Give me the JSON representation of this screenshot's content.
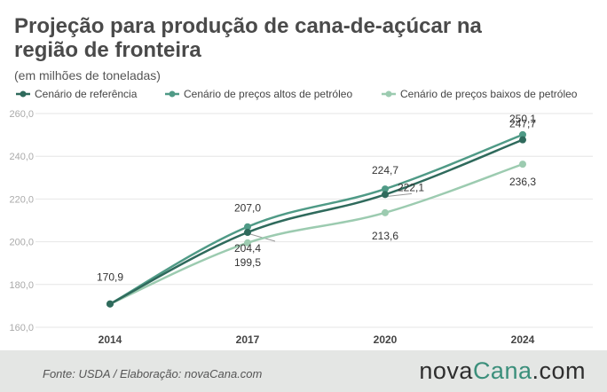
{
  "title": "Projeção para produção de cana-de-açúcar na região de fronteira",
  "subtitle": "(em milhões de toneladas)",
  "source": "Fonte: USDA / Elaboração:  novaCana.com",
  "logo": {
    "part1": "nova",
    "part2": "Cana",
    "part3": ".com"
  },
  "colors": {
    "ref": "#2f6a5c",
    "high": "#4f9a86",
    "low": "#9ccbb0",
    "grid": "#e6e6e6",
    "axis_text": "#aaaaaa",
    "footer_bg": "#e4e6e4",
    "accent": "#3b8f7b"
  },
  "chart_data": {
    "type": "line",
    "categories": [
      "2014",
      "2017",
      "2020",
      "2024"
    ],
    "ylim": [
      160,
      260
    ],
    "yticks": [
      "160,0",
      "180,0",
      "200,0",
      "220,0",
      "240,0",
      "260,0"
    ],
    "legend_position": "top",
    "grid": true,
    "series": [
      {
        "name": "Cenário de referência",
        "values": [
          170.9,
          204.4,
          222.1,
          247.7
        ],
        "labels": [
          "",
          "204,4",
          "222,1",
          "247,7"
        ],
        "color": "#2f6a5c"
      },
      {
        "name": "Cenário de preços altos de petróleo",
        "values": [
          170.9,
          207.0,
          224.7,
          250.1
        ],
        "labels": [
          "170,9",
          "207,0",
          "224,7",
          "250,1"
        ],
        "color": "#4f9a86"
      },
      {
        "name": "Cenário de preços baixos de petróleo",
        "values": [
          170.9,
          199.5,
          213.6,
          236.3
        ],
        "labels": [
          "",
          "199,5",
          "213,6",
          "236,3"
        ],
        "color": "#9ccbb0"
      }
    ]
  }
}
